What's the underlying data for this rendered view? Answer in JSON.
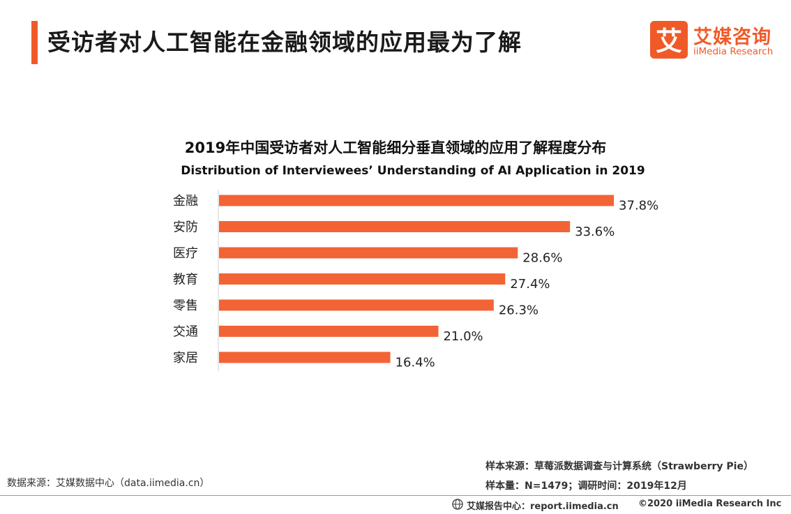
{
  "header": {
    "title": "受访者对人工智能在金融领域的应用最为了解",
    "accent_color": "#F05A28"
  },
  "logo": {
    "mark_glyph": "艾",
    "name_cn": "艾媒咨询",
    "name_en": "iiMedia Research",
    "color": "#F05A28"
  },
  "chart_data": {
    "type": "bar",
    "orientation": "horizontal",
    "title": "2019年中国受访者对人工智能细分垂直领域的应用了解程度分布",
    "subtitle": "Distribution of Interviewees’ Understanding of AI Application in 2019",
    "categories": [
      "金融",
      "安防",
      "医疗",
      "教育",
      "零售",
      "交通",
      "家居"
    ],
    "values": [
      37.8,
      33.6,
      28.6,
      27.4,
      26.3,
      21.0,
      16.4
    ],
    "value_labels": [
      "37.8%",
      "33.6%",
      "28.6%",
      "27.4%",
      "26.3%",
      "21.0%",
      "16.4%"
    ],
    "unit": "%",
    "xlim": [
      0,
      40
    ],
    "bar_color": "#F26436",
    "grid": false,
    "legend": "none"
  },
  "footer": {
    "data_source": "数据来源：艾媒数据中心（data.iimedia.cn）",
    "sample_source": "样本来源：草莓派数据调查与计算系统（Strawberry  Pie）",
    "sample_info": "样本量：N=1479；调研时间：2019年12月",
    "site": "艾媒报告中心：report.iimedia.cn",
    "copyright": "©2020  iiMedia Research Inc"
  }
}
